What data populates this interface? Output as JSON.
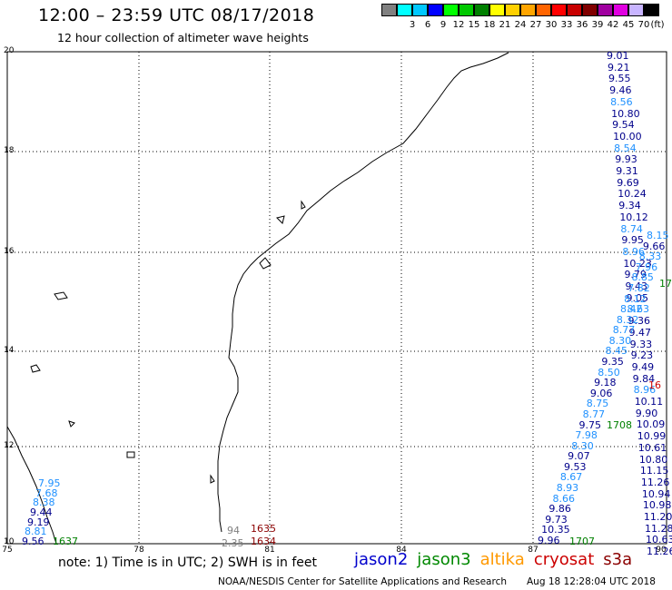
{
  "header": {
    "title": "12:00 – 23:59 UTC 08/17/2018",
    "subtitle": "12 hour collection of altimeter wave heights"
  },
  "legend": {
    "unit": "(ft)",
    "swatches": [
      {
        "color": "#808080",
        "label": ""
      },
      {
        "color": "#00ffff",
        "label": "3"
      },
      {
        "color": "#00c8ff",
        "label": "6"
      },
      {
        "color": "#0000ff",
        "label": "9"
      },
      {
        "color": "#00ff00",
        "label": "12"
      },
      {
        "color": "#00c800",
        "label": "15"
      },
      {
        "color": "#008000",
        "label": "18"
      },
      {
        "color": "#ffff00",
        "label": "21"
      },
      {
        "color": "#ffd000",
        "label": "24"
      },
      {
        "color": "#ffa500",
        "label": "27"
      },
      {
        "color": "#ff6400",
        "label": "30"
      },
      {
        "color": "#ff0000",
        "label": "33"
      },
      {
        "color": "#c80000",
        "label": "36"
      },
      {
        "color": "#800000",
        "label": "39"
      },
      {
        "color": "#a000a0",
        "label": "42"
      },
      {
        "color": "#e000e0",
        "label": "45"
      },
      {
        "color": "#c8b4ff",
        "label": "70"
      },
      {
        "color": "#000000",
        "label": ""
      }
    ]
  },
  "axes": {
    "lat_labels": [
      "20",
      "18",
      "16",
      "14",
      "12",
      "10"
    ],
    "lon_labels": [
      "75",
      "78",
      "81",
      "84",
      "87",
      "90"
    ]
  },
  "notes": {
    "text": "note:  1) Time is in UTC;  2) SWH is in feet"
  },
  "satellites": [
    {
      "name": "jason2",
      "color": "#0000cc"
    },
    {
      "name": "jason3",
      "color": "#008800"
    },
    {
      "name": "altika",
      "color": "#ff9900"
    },
    {
      "name": "cryosat",
      "color": "#cc0000"
    },
    {
      "name": "s3a",
      "color": "#8b0000"
    }
  ],
  "footer": {
    "credit": "NOAA/NESDIS Center for Satellite Applications and Research",
    "timestamp": "Aug 18 12:28:04 UTC 2018"
  },
  "observations": {
    "track_right": [
      {
        "v": "9.01",
        "c": "#00008b"
      },
      {
        "v": "9.21",
        "c": "#00008b"
      },
      {
        "v": "9.55",
        "c": "#00008b"
      },
      {
        "v": "9.46",
        "c": "#00008b"
      },
      {
        "v": "8.56",
        "c": "#1e90ff"
      },
      {
        "v": "10.80",
        "c": "#00008b"
      },
      {
        "v": "9.54",
        "c": "#00008b"
      },
      {
        "v": "10.00",
        "c": "#00008b"
      },
      {
        "v": "8.54",
        "c": "#1e90ff"
      },
      {
        "v": "9.93",
        "c": "#00008b"
      },
      {
        "v": "9.31",
        "c": "#00008b"
      },
      {
        "v": "9.69",
        "c": "#00008b"
      },
      {
        "v": "10.24",
        "c": "#00008b"
      },
      {
        "v": "9.34",
        "c": "#00008b"
      },
      {
        "v": "10.12",
        "c": "#00008b"
      },
      {
        "v": "8.74",
        "c": "#1e90ff"
      },
      {
        "v": "9.95",
        "c": "#00008b"
      },
      {
        "v": "8.96",
        "c": "#1e90ff"
      },
      {
        "v": "10.23",
        "c": "#00008b"
      },
      {
        "v": "9.79",
        "c": "#00008b"
      },
      {
        "v": "9.43",
        "c": "#00008b"
      },
      {
        "v": "9.05",
        "c": "#00008b"
      },
      {
        "v": "8.63",
        "c": "#1e90ff"
      },
      {
        "v": "9.36",
        "c": "#00008b"
      },
      {
        "v": "9.47",
        "c": "#00008b"
      },
      {
        "v": "9.33",
        "c": "#00008b"
      },
      {
        "v": "9.23",
        "c": "#00008b"
      },
      {
        "v": "9.49",
        "c": "#00008b"
      },
      {
        "v": "9.84",
        "c": "#00008b"
      },
      {
        "v": "8.96",
        "c": "#1e90ff"
      },
      {
        "v": "10.11",
        "c": "#00008b"
      },
      {
        "v": "9.90",
        "c": "#00008b"
      },
      {
        "v": "10.09",
        "c": "#00008b"
      },
      {
        "v": "10.99",
        "c": "#00008b"
      },
      {
        "v": "10.61",
        "c": "#00008b"
      },
      {
        "v": "10.80",
        "c": "#00008b"
      },
      {
        "v": "11.15",
        "c": "#00008b"
      },
      {
        "v": "11.26",
        "c": "#00008b"
      },
      {
        "v": "10.94",
        "c": "#00008b"
      },
      {
        "v": "10.98",
        "c": "#00008b"
      },
      {
        "v": "11.20",
        "c": "#00008b"
      },
      {
        "v": "11.28",
        "c": "#00008b"
      },
      {
        "v": "10.63",
        "c": "#00008b"
      },
      {
        "v": "11.26",
        "c": "#00008b"
      }
    ],
    "track_diag_left": [
      {
        "v": "8.15",
        "c": "#1e90ff"
      },
      {
        "v": "9.66",
        "c": "#00008b"
      },
      {
        "v": "8.33",
        "c": "#1e90ff"
      },
      {
        "v": "7.96",
        "c": "#1e90ff"
      },
      {
        "v": "8.85",
        "c": "#1e90ff"
      },
      {
        "v": "7.82",
        "c": "#1e90ff"
      },
      {
        "v": "8.12",
        "c": "#1e90ff"
      },
      {
        "v": "8.42",
        "c": "#1e90ff"
      },
      {
        "v": "8.32",
        "c": "#1e90ff"
      },
      {
        "v": "8.77",
        "c": "#1e90ff"
      },
      {
        "v": "8.30",
        "c": "#1e90ff"
      },
      {
        "v": "8.45",
        "c": "#1e90ff"
      },
      {
        "v": "9.35",
        "c": "#00008b"
      },
      {
        "v": "8.50",
        "c": "#1e90ff"
      },
      {
        "v": "9.18",
        "c": "#00008b"
      },
      {
        "v": "9.06",
        "c": "#00008b"
      },
      {
        "v": "8.75",
        "c": "#1e90ff"
      },
      {
        "v": "8.77",
        "c": "#1e90ff"
      },
      {
        "v": "9.75",
        "c": "#00008b"
      },
      {
        "v": "7.98",
        "c": "#1e90ff"
      },
      {
        "v": "8.30",
        "c": "#1e90ff"
      },
      {
        "v": "9.07",
        "c": "#00008b"
      },
      {
        "v": "9.53",
        "c": "#00008b"
      },
      {
        "v": "8.67",
        "c": "#1e90ff"
      },
      {
        "v": "8.93",
        "c": "#1e90ff"
      },
      {
        "v": "8.66",
        "c": "#1e90ff"
      },
      {
        "v": "9.86",
        "c": "#00008b"
      },
      {
        "v": "9.73",
        "c": "#00008b"
      },
      {
        "v": "10.35",
        "c": "#00008b"
      },
      {
        "v": "9.96",
        "c": "#00008b"
      }
    ],
    "track_lower_left": [
      {
        "v": "7.95",
        "c": "#1e90ff"
      },
      {
        "v": "7.68",
        "c": "#1e90ff"
      },
      {
        "v": "8.38",
        "c": "#1e90ff"
      },
      {
        "v": "9.44",
        "c": "#00008b"
      },
      {
        "v": "9.19",
        "c": "#00008b"
      },
      {
        "v": "8.81",
        "c": "#1e90ff"
      },
      {
        "v": "9.56",
        "c": "#00008b"
      }
    ],
    "other_labels": [
      {
        "v": "1637",
        "c": "#008000"
      },
      {
        "v": "94",
        "c": "#808080"
      },
      {
        "v": "2.35",
        "c": "#808080"
      },
      {
        "v": "1635",
        "c": "#8b0000"
      },
      {
        "v": "1634",
        "c": "#8b0000"
      },
      {
        "v": "1708",
        "c": "#008000"
      },
      {
        "v": "1707",
        "c": "#008000"
      },
      {
        "v": "17",
        "c": "#008000"
      },
      {
        "v": "16",
        "c": "#cc0000"
      }
    ]
  }
}
